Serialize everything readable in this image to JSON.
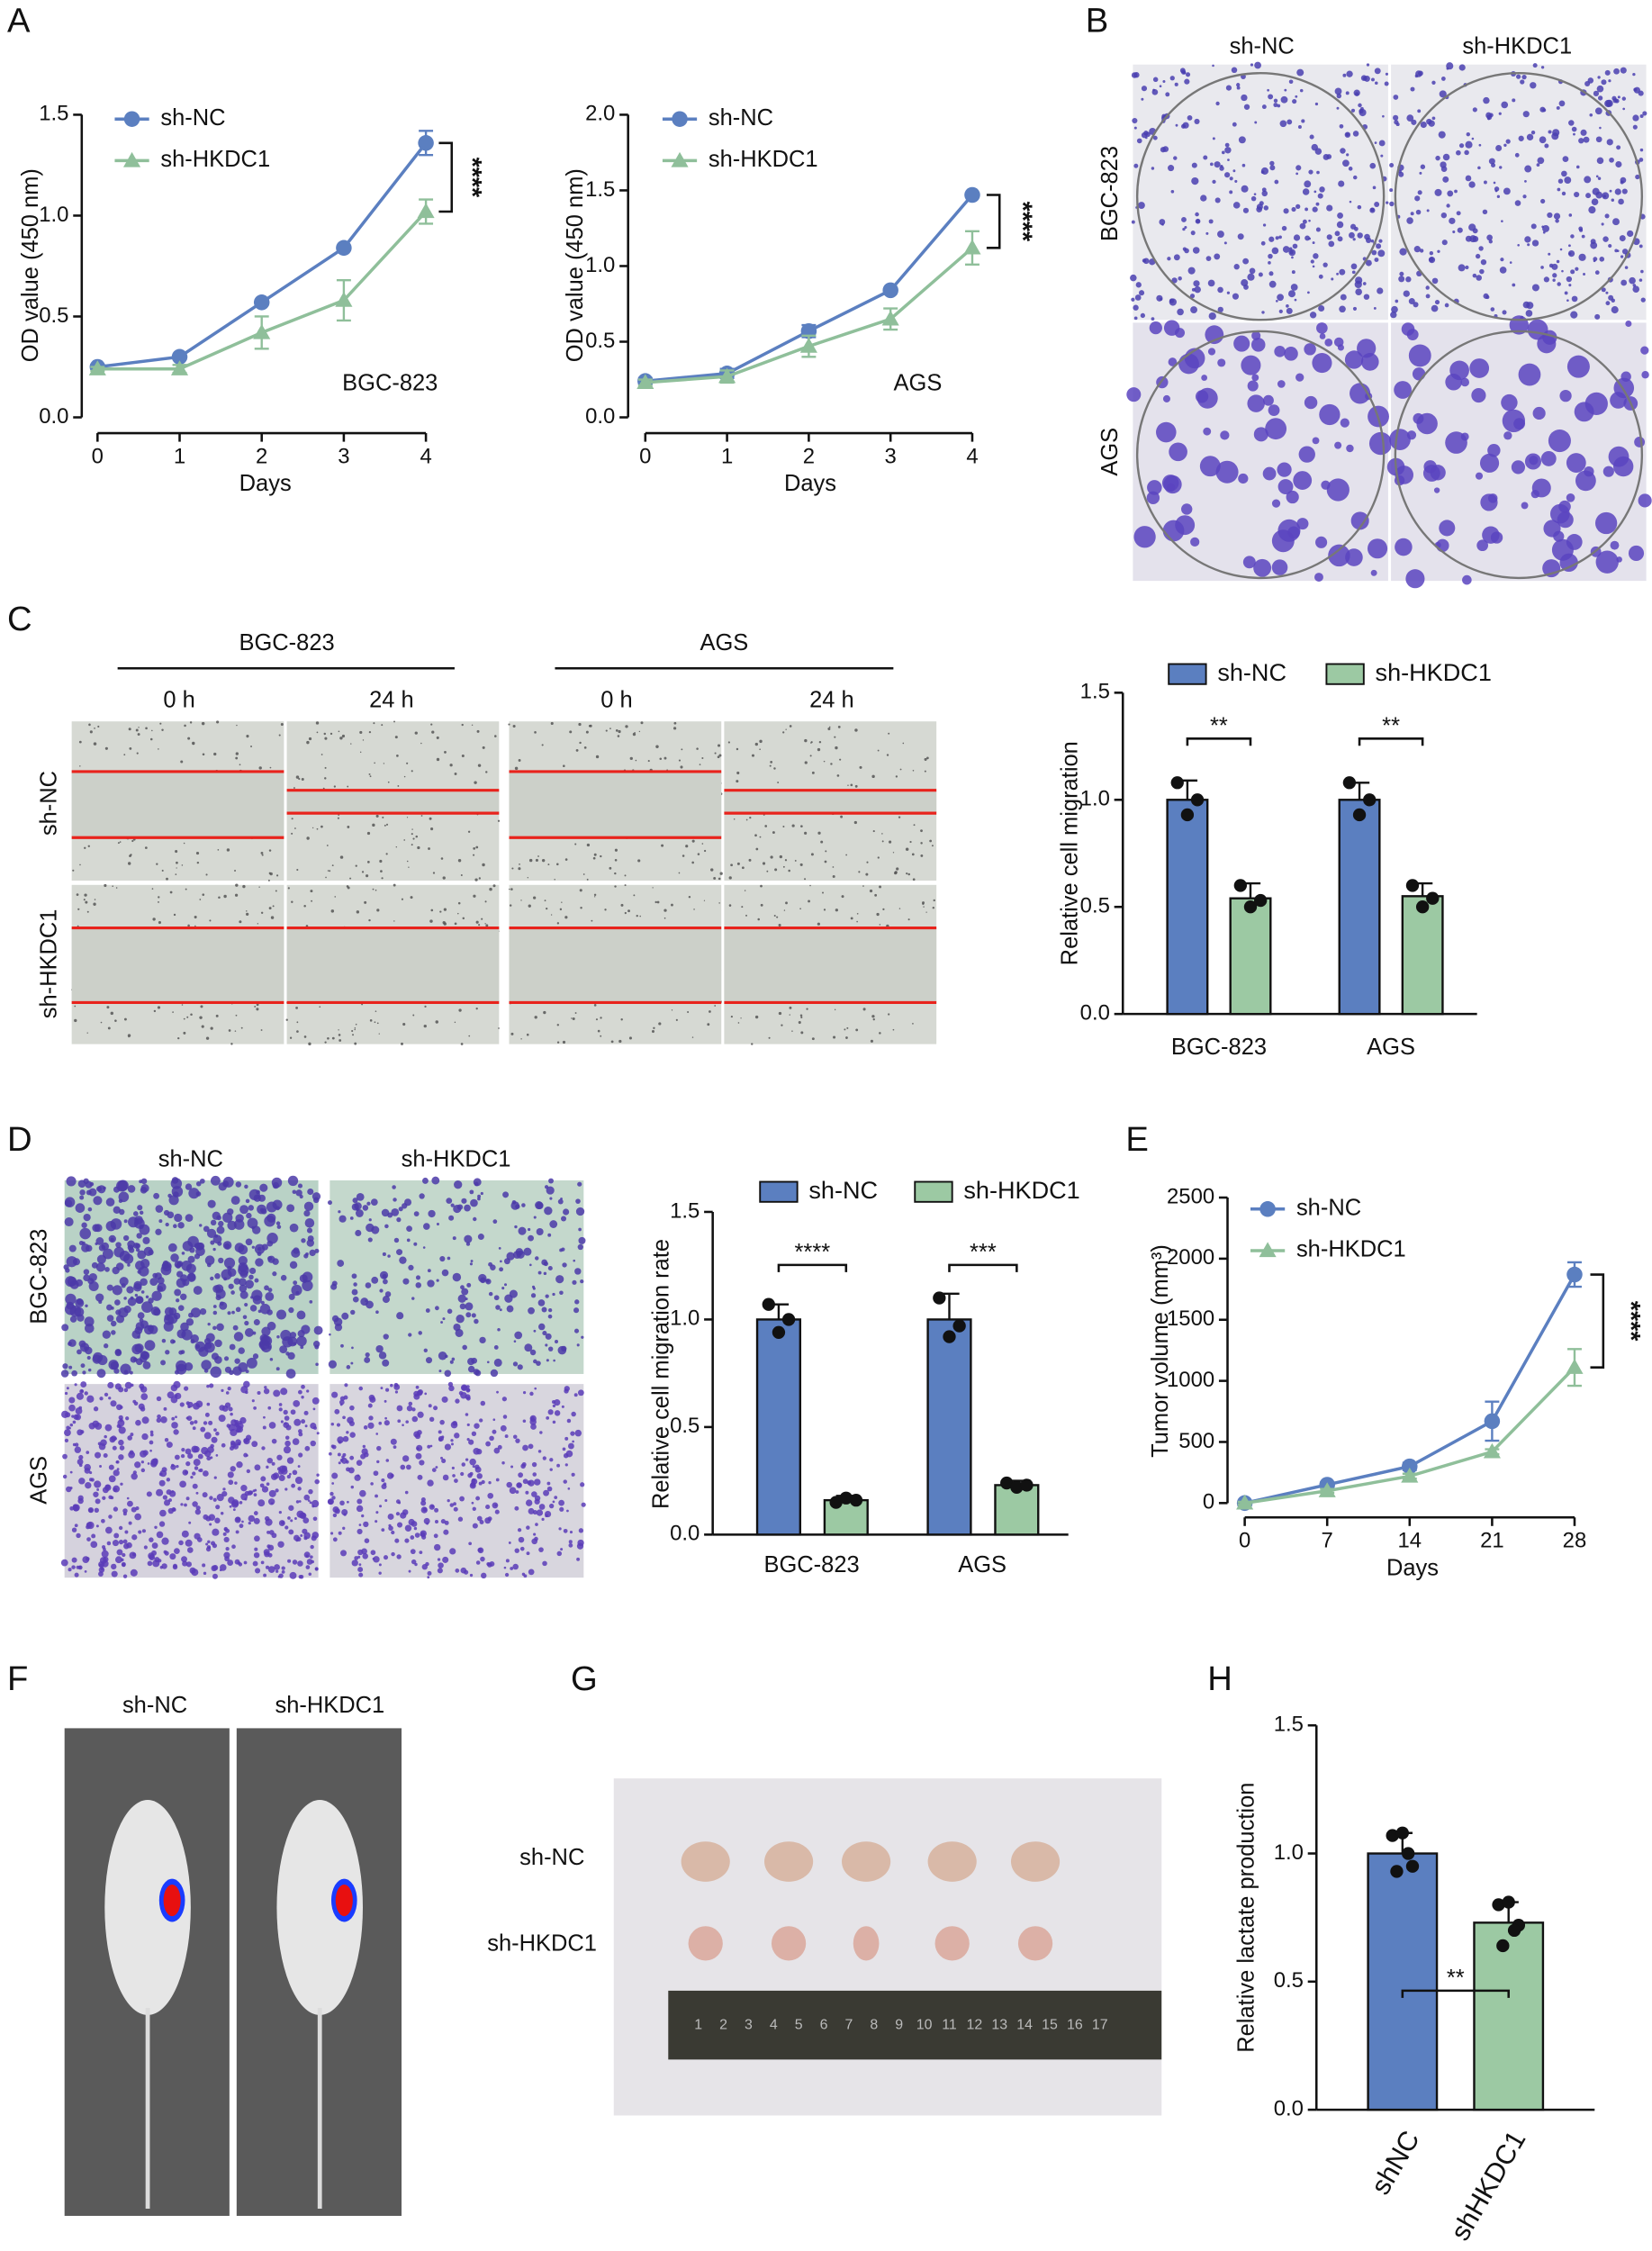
{
  "chart_data": [
    {
      "type": "line",
      "x": [
        0,
        1,
        2,
        3,
        4
      ],
      "xlim": [
        0,
        4
      ],
      "xticks": [
        0,
        1,
        2,
        3,
        4
      ],
      "ylim": [
        0,
        1.5
      ],
      "yticks": [
        {
          "value": 0,
          "label": "0.0"
        },
        {
          "value": 0.5,
          "label": "0.5"
        },
        {
          "value": 1,
          "label": "1.0"
        },
        {
          "value": 1.5,
          "label": "1.5"
        }
      ],
      "y_label": "OD value (450 nm)",
      "x_label": "Days",
      "annotations": [
        "BGC-823",
        "****"
      ],
      "series": [
        {
          "name": "sh-NC",
          "color": "#5b7fc0",
          "marker": "circle",
          "values": [
            0.25,
            0.3,
            0.57,
            0.84,
            1.36
          ],
          "errors": [
            0.01,
            0.01,
            0.01,
            0.01,
            0.06
          ]
        },
        {
          "name": "sh-HKDC1",
          "color": "#8fbf9a",
          "marker": "triangle",
          "values": [
            0.24,
            0.24,
            0.42,
            0.58,
            1.02
          ],
          "errors": [
            0.01,
            0.02,
            0.08,
            0.1,
            0.06
          ]
        }
      ]
    },
    {
      "type": "line",
      "x": [
        0,
        1,
        2,
        3,
        4
      ],
      "xlim": [
        0,
        4
      ],
      "xticks": [
        0,
        1,
        2,
        3,
        4
      ],
      "ylim": [
        0,
        2
      ],
      "yticks": [
        {
          "value": 0,
          "label": "0.0"
        },
        {
          "value": 0.5,
          "label": "0.5"
        },
        {
          "value": 1,
          "label": "1.0"
        },
        {
          "value": 1.5,
          "label": "1.5"
        },
        {
          "value": 2,
          "label": "2.0"
        }
      ],
      "y_label": "OD value (450 nm)",
      "x_label": "Days",
      "annotations": [
        "AGS",
        "****"
      ],
      "series": [
        {
          "name": "sh-NC",
          "color": "#5b7fc0",
          "marker": "circle",
          "values": [
            0.24,
            0.29,
            0.57,
            0.84,
            1.47
          ],
          "errors": [
            0.02,
            0.03,
            0.04,
            0.01,
            0.01
          ]
        },
        {
          "name": "sh-HKDC1",
          "color": "#8fbf9a",
          "marker": "triangle",
          "values": [
            0.23,
            0.27,
            0.47,
            0.65,
            1.12
          ],
          "errors": [
            0.02,
            0.04,
            0.07,
            0.07,
            0.11
          ]
        }
      ]
    },
    {
      "type": "bar",
      "categories": [
        "BGC-823",
        "AGS"
      ],
      "ylim": [
        0,
        1.5
      ],
      "yticks": [
        {
          "value": 0,
          "label": "0.0"
        },
        {
          "value": 0.5,
          "label": "0.5"
        },
        {
          "value": 1,
          "label": "1.0"
        },
        {
          "value": 1.5,
          "label": "1.5"
        }
      ],
      "y_label": "Relative cell migration",
      "annotations": [
        "**",
        "**"
      ],
      "series": [
        {
          "name": "sh-NC",
          "color": "#5b7fc0",
          "values": [
            1.0,
            1.0
          ],
          "errors": [
            0.09,
            0.08
          ],
          "points": [
            [
              1.08,
              0.93,
              1.0
            ],
            [
              1.08,
              0.93,
              1.0
            ]
          ]
        },
        {
          "name": "sh-HKDC1",
          "color": "#9cc9a3",
          "values": [
            0.54,
            0.55
          ],
          "errors": [
            0.07,
            0.06
          ],
          "points": [
            [
              0.6,
              0.5,
              0.53
            ],
            [
              0.6,
              0.5,
              0.54
            ]
          ]
        }
      ]
    },
    {
      "type": "bar",
      "categories": [
        "BGC-823",
        "AGS"
      ],
      "ylim": [
        0,
        1.5
      ],
      "yticks": [
        {
          "value": 0,
          "label": "0.0"
        },
        {
          "value": 0.5,
          "label": "0.5"
        },
        {
          "value": 1,
          "label": "1.0"
        },
        {
          "value": 1.5,
          "label": "1.5"
        }
      ],
      "y_label": "Relative cell migration rate",
      "annotations": [
        "****",
        "***"
      ],
      "series": [
        {
          "name": "sh-NC",
          "color": "#5b7fc0",
          "values": [
            1.0,
            1.0
          ],
          "errors": [
            0.07,
            0.12
          ],
          "points": [
            [
              1.07,
              0.94,
              1.0
            ],
            [
              1.1,
              0.92,
              0.97
            ]
          ]
        },
        {
          "name": "sh-HKDC1",
          "color": "#9cc9a3",
          "values": [
            0.16,
            0.23
          ],
          "errors": [
            0.02,
            0.02
          ],
          "points": [
            [
              0.15,
              0.17,
              0.16
            ],
            [
              0.24,
              0.22,
              0.23
            ]
          ]
        }
      ]
    },
    {
      "type": "line",
      "x": [
        0,
        7,
        14,
        21,
        28
      ],
      "xlim": [
        0,
        28
      ],
      "xticks": [
        0,
        7,
        14,
        21,
        28
      ],
      "ylim": [
        0,
        2500
      ],
      "yticks": [
        0,
        500,
        1000,
        1500,
        2000,
        2500
      ],
      "y_label": "Tumor volume (mm³)",
      "x_label": "Days",
      "annotations": [
        "****"
      ],
      "series": [
        {
          "name": "sh-NC",
          "color": "#5b7fc0",
          "marker": "circle",
          "values": [
            0,
            150,
            300,
            670,
            1870
          ],
          "errors": [
            10,
            20,
            30,
            160,
            100
          ]
        },
        {
          "name": "sh-HKDC1",
          "color": "#8fbf9a",
          "marker": "triangle",
          "values": [
            0,
            100,
            220,
            420,
            1110
          ],
          "errors": [
            10,
            15,
            20,
            20,
            150
          ]
        }
      ]
    },
    {
      "type": "bar",
      "categories": [
        "shNC",
        "shHKDC1"
      ],
      "colors": [
        "#5b7fc0",
        "#9cc9a3"
      ],
      "ylim": [
        0,
        1.5
      ],
      "yticks": [
        {
          "value": 0,
          "label": "0.0"
        },
        {
          "value": 0.5,
          "label": "0.5"
        },
        {
          "value": 1,
          "label": "1.0"
        },
        {
          "value": 1.5,
          "label": "1.5"
        }
      ],
      "y_label": "Relative lactate production",
      "annotations": [
        "**"
      ],
      "values": [
        1.0,
        0.73
      ],
      "errors": [
        0.08,
        0.08
      ],
      "points": [
        [
          1.07,
          1.08,
          0.95,
          0.93,
          1.0
        ],
        [
          0.8,
          0.81,
          0.72,
          0.64,
          0.7
        ]
      ]
    }
  ],
  "panel_letters": [
    "A",
    "B",
    "C",
    "D",
    "E",
    "F",
    "G",
    "H"
  ],
  "panel_b": {
    "columns": [
      "sh-NC",
      "sh-HKDC1"
    ],
    "rows": [
      "BGC-823",
      "AGS"
    ]
  },
  "panel_c": {
    "cell_lines": [
      "BGC-823",
      "AGS"
    ],
    "times": [
      "0 h",
      "24 h",
      "0 h",
      "24 h"
    ],
    "rows": [
      "sh-NC",
      "sh-HKDC1"
    ]
  },
  "panel_d": {
    "columns": [
      "sh-NC",
      "sh-HKDC1"
    ],
    "rows": [
      "BGC-823",
      "AGS"
    ]
  },
  "panel_f": {
    "columns": [
      "sh-NC",
      "sh-HKDC1"
    ]
  },
  "panel_g": {
    "rows": [
      "sh-NC",
      "sh-HKDC1"
    ],
    "ruler": [
      1,
      2,
      3,
      4,
      5,
      6,
      7,
      8,
      9,
      10,
      11,
      12,
      13,
      14,
      15,
      16,
      17
    ]
  }
}
